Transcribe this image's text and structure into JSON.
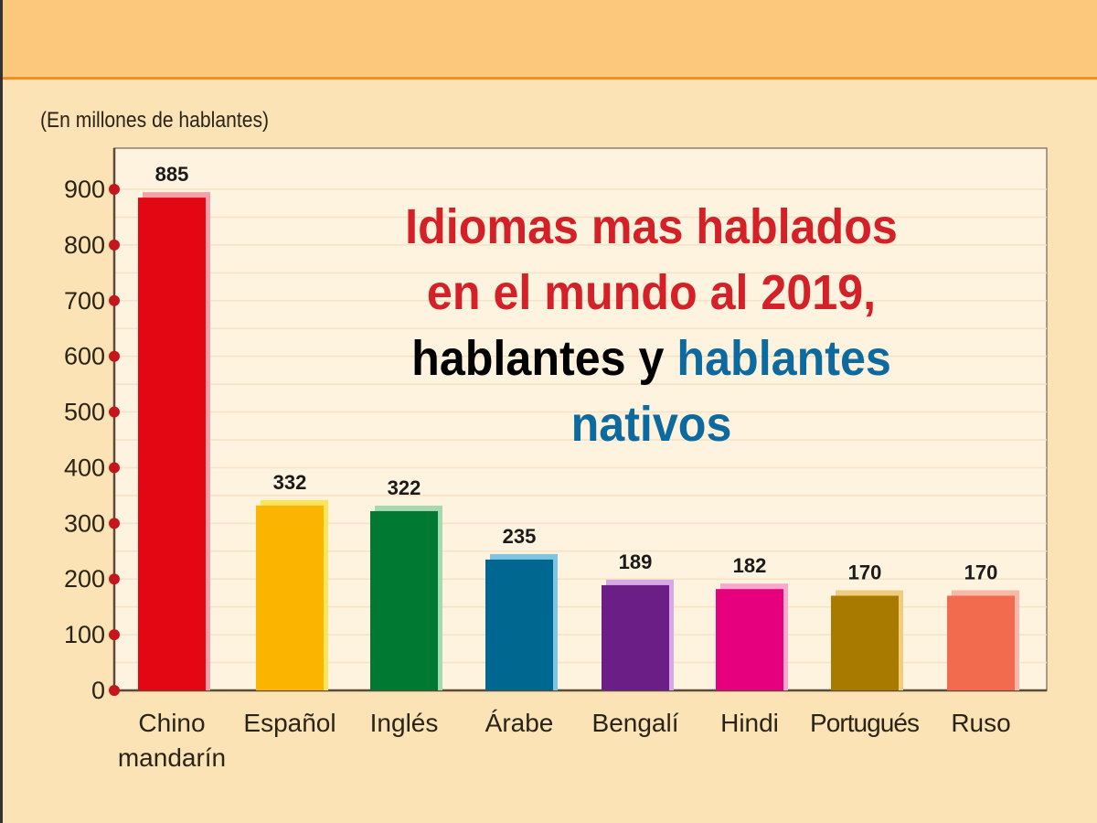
{
  "chart_data": {
    "type": "bar",
    "title_lines": [
      {
        "parts": [
          {
            "text": "Idiomas mas hablados",
            "color": "#d42027"
          }
        ]
      },
      {
        "parts": [
          {
            "text": "en el mundo al 2019,",
            "color": "#d42027"
          }
        ]
      },
      {
        "parts": [
          {
            "text": "hablantes y ",
            "color": "#000000"
          },
          {
            "text": "hablantes",
            "color": "#0d6a9e"
          }
        ]
      },
      {
        "parts": [
          {
            "text": "nativos",
            "color": "#0d6a9e"
          }
        ]
      }
    ],
    "ylabel": "(En millones de hablantes)",
    "ylim": [
      0,
      900
    ],
    "yticks": [
      "0",
      "100",
      "200",
      "300",
      "400",
      "500",
      "600",
      "700",
      "800",
      "900"
    ],
    "grid": true,
    "categories": [
      "Chino mandarín",
      "Español",
      "Inglés",
      "Árabe",
      "Bengalí",
      "Hindi",
      "Portugués",
      "Ruso"
    ],
    "category_lines": [
      [
        "Chino",
        "mandarín"
      ],
      [
        "Español"
      ],
      [
        "Inglés"
      ],
      [
        "Árabe"
      ],
      [
        "Bengalí"
      ],
      [
        "Hindi"
      ],
      [
        "Portugués"
      ],
      [
        "Ruso"
      ]
    ],
    "values": [
      885,
      332,
      322,
      235,
      189,
      182,
      170,
      170
    ],
    "data_labels": [
      "885",
      "332",
      "322",
      "235",
      "189",
      "182",
      "170",
      "170"
    ],
    "colors": [
      "#e30613",
      "#fbb400",
      "#007a33",
      "#006890",
      "#6b1f86",
      "#e6007e",
      "#a87a00",
      "#f26b4f"
    ],
    "shadow_colors": [
      "#f4a0a8",
      "#fde45a",
      "#a8d8b0",
      "#7fc4e0",
      "#d7a8e6",
      "#f7a8cf",
      "#f0cc80",
      "#fbb8a8"
    ]
  }
}
